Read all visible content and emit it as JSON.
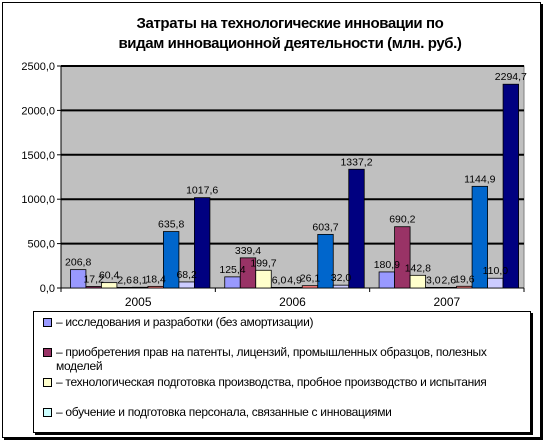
{
  "chart_data": {
    "type": "bar",
    "title_lines": [
      "Затраты на технологические инновации по",
      "видам инновационной деятельности (млн. руб.)"
    ],
    "categories": [
      "2005",
      "2006",
      "2007"
    ],
    "ylim": [
      0,
      2500
    ],
    "yticks": [
      "0,0",
      "500,0",
      "1000,0",
      "1500,0",
      "2000,0",
      "2500,0"
    ],
    "grid": true,
    "legend_position": "bottom",
    "series": [
      {
        "name": "– исследования и разработки (без амортизации)",
        "color": "#9999ff",
        "values": [
          206.8,
          125.4,
          180.9
        ],
        "labels": [
          "206,8",
          "125,4",
          "180,9"
        ]
      },
      {
        "name": "– приобретения прав на патенты, лицензий, промышленных образцов, полезных моделей",
        "color": "#993366",
        "values": [
          17.2,
          339.4,
          690.2
        ],
        "labels": [
          "17,2",
          "339,4",
          "690,2"
        ]
      },
      {
        "name": "– технологическая подготовка производства, пробное производство и испытания",
        "color": "#ffffcc",
        "values": [
          60.4,
          199.7,
          142.8
        ],
        "labels": [
          "60,4",
          "199,7",
          "142,8"
        ]
      },
      {
        "name": "– обучение и подготовка персонала, связанные с инновациями",
        "color": "#ccffff",
        "values": [
          2.6,
          6.0,
          3.0
        ],
        "labels": [
          "2,6",
          "6,0",
          "3,0"
        ]
      },
      {
        "name": "",
        "color": "#660066",
        "values": [
          8.1,
          4.9,
          2.6
        ],
        "labels": [
          "8,1",
          "4,9",
          "2,6"
        ]
      },
      {
        "name": "",
        "color": "#ff8080",
        "values": [
          18.4,
          26.1,
          19.6
        ],
        "labels": [
          "18,4",
          "26,1",
          "19,6"
        ]
      },
      {
        "name": "",
        "color": "#0066cc",
        "values": [
          635.8,
          603.7,
          1144.9
        ],
        "labels": [
          "635,8",
          "603,7",
          "1144,9"
        ]
      },
      {
        "name": "",
        "color": "#ccccff",
        "values": [
          68.2,
          32.0,
          110.0
        ],
        "labels": [
          "68,2",
          "32,0",
          "110,0"
        ]
      },
      {
        "name": "",
        "color": "#000080",
        "values": [
          1017.6,
          1337.2,
          2294.7
        ],
        "labels": [
          "1017,6",
          "1337,2",
          "2294,7"
        ]
      }
    ]
  }
}
